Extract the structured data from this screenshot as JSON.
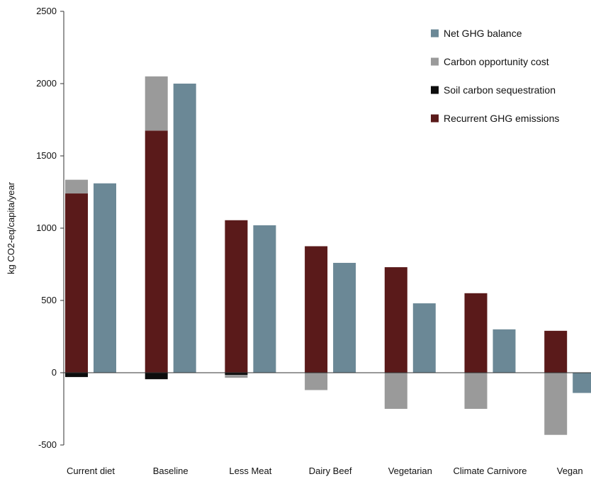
{
  "chart_data": {
    "type": "bar",
    "ylabel": "kg CO2-eq/capita/year",
    "ylim": [
      -500,
      2500
    ],
    "yticks": [
      -500,
      0,
      500,
      1000,
      1500,
      2000,
      2500
    ],
    "grid": false,
    "legend_position": "top-right",
    "categories": [
      "Current diet",
      "Baseline",
      "Less Meat",
      "Dairy Beef",
      "Vegetarian",
      "Climate Carnivore",
      "Vegan"
    ],
    "series": [
      {
        "name": "Recurrent GHG emissions",
        "color": "#5a1a1a",
        "stack": "components",
        "values": [
          1240,
          1675,
          1055,
          875,
          730,
          550,
          290
        ]
      },
      {
        "name": "Soil carbon sequestration",
        "color": "#0d0d0d",
        "stack": "components",
        "values": [
          -30,
          -45,
          -15,
          0,
          0,
          0,
          0
        ]
      },
      {
        "name": "Carbon opportunity cost",
        "color": "#9a9a9a",
        "stack": "components",
        "values": [
          95,
          375,
          -20,
          -120,
          -250,
          -250,
          -430
        ]
      },
      {
        "name": "Net GHG balance",
        "color": "#6b8896",
        "stack": "net",
        "values": [
          1310,
          2000,
          1020,
          760,
          480,
          300,
          -140
        ]
      }
    ],
    "legend_order": [
      "Net GHG balance",
      "Carbon opportunity cost",
      "Soil carbon sequestration",
      "Recurrent GHG emissions"
    ]
  }
}
